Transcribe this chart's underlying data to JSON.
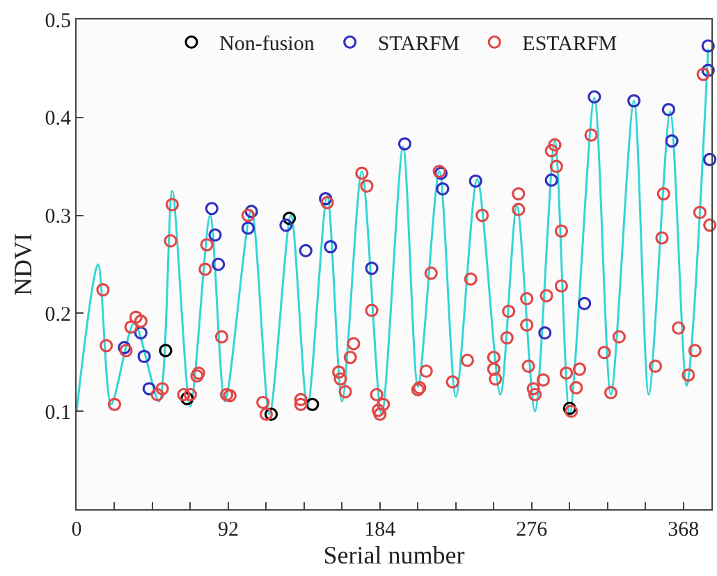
{
  "chart_data": {
    "type": "scatter",
    "xlabel": "Serial number",
    "ylabel": "NDVI",
    "xlim": [
      0,
      385
    ],
    "ylim": [
      0,
      0.5
    ],
    "xticks": [
      0,
      {
        "value": 23,
        "label": null
      },
      {
        "value": 46,
        "label": null
      },
      {
        "value": 69,
        "label": null
      },
      92,
      {
        "value": 115,
        "label": null
      },
      {
        "value": 138,
        "label": null
      },
      {
        "value": 161,
        "label": null
      },
      184,
      {
        "value": 207,
        "label": null
      },
      {
        "value": 230,
        "label": null
      },
      {
        "value": 253,
        "label": null
      },
      276,
      {
        "value": 299,
        "label": null
      },
      {
        "value": 322,
        "label": null
      },
      {
        "value": 345,
        "label": null
      },
      368
    ],
    "yticks": [
      0.1,
      0.2,
      0.3,
      0.4,
      0.5
    ],
    "grid": false,
    "legend": "top",
    "series": [
      {
        "type": "line",
        "color": "#33d6d6",
        "line_style": "solid",
        "marker": "none",
        "x": [
          0,
          13,
          21,
          35,
          50,
          58,
          69,
          81,
          90,
          106,
          117,
          130,
          140,
          152,
          161,
          173,
          185,
          198,
          207,
          220,
          230,
          243,
          257,
          267,
          278,
          290,
          299,
          314,
          324,
          338,
          347,
          360,
          370,
          383
        ],
        "values": [
          0.1,
          0.25,
          0.107,
          0.19,
          0.11,
          0.325,
          0.105,
          0.3,
          0.11,
          0.305,
          0.097,
          0.3,
          0.105,
          0.32,
          0.11,
          0.345,
          0.097,
          0.37,
          0.125,
          0.345,
          0.115,
          0.337,
          0.117,
          0.31,
          0.1,
          0.376,
          0.097,
          0.42,
          0.117,
          0.417,
          0.117,
          0.406,
          0.126,
          0.47
        ]
      },
      {
        "name": "Non-fusion",
        "color": "#000000",
        "marker": "circle",
        "x": [
          54,
          67,
          118,
          129,
          143,
          299
        ],
        "values": [
          0.162,
          0.113,
          0.097,
          0.297,
          0.107,
          0.103
        ]
      },
      {
        "name": "STARFM",
        "color": "#3030c0",
        "marker": "circle",
        "x": [
          29,
          39,
          41,
          44,
          82,
          84,
          86,
          104,
          106,
          127,
          139,
          151,
          154,
          179,
          199,
          221,
          222,
          242,
          284,
          288,
          308,
          314,
          338,
          359,
          361,
          383,
          383,
          384
        ],
        "values": [
          0.165,
          0.18,
          0.156,
          0.123,
          0.307,
          0.28,
          0.25,
          0.287,
          0.304,
          0.29,
          0.264,
          0.317,
          0.268,
          0.246,
          0.373,
          0.343,
          0.327,
          0.335,
          0.18,
          0.336,
          0.21,
          0.421,
          0.417,
          0.408,
          0.376,
          0.473,
          0.448,
          0.357
        ]
      },
      {
        "name": "ESTARFM",
        "color": "#e04848",
        "marker": "circle",
        "x": [
          16,
          18,
          23,
          30,
          33,
          36,
          39,
          49,
          52,
          57,
          58,
          65,
          69,
          73,
          74,
          78,
          79,
          88,
          91,
          93,
          104,
          113,
          115,
          136,
          136,
          152,
          159,
          160,
          163,
          166,
          168,
          173,
          176,
          179,
          182,
          183,
          184,
          186,
          207,
          208,
          212,
          215,
          220,
          228,
          237,
          239,
          246,
          253,
          253,
          254,
          261,
          262,
          268,
          268,
          273,
          273,
          274,
          277,
          278,
          283,
          285,
          288,
          290,
          291,
          294,
          294,
          297,
          300,
          303,
          305,
          312,
          320,
          324,
          329,
          351,
          355,
          356,
          365,
          371,
          375,
          378,
          380,
          384
        ],
        "values": [
          0.224,
          0.167,
          0.107,
          0.162,
          0.186,
          0.196,
          0.192,
          0.117,
          0.123,
          0.274,
          0.311,
          0.117,
          0.117,
          0.136,
          0.139,
          0.245,
          0.27,
          0.176,
          0.117,
          0.116,
          0.3,
          0.109,
          0.097,
          0.112,
          0.107,
          0.313,
          0.14,
          0.133,
          0.12,
          0.155,
          0.169,
          0.343,
          0.33,
          0.203,
          0.117,
          0.101,
          0.097,
          0.107,
          0.122,
          0.124,
          0.141,
          0.241,
          0.345,
          0.13,
          0.152,
          0.235,
          0.3,
          0.155,
          0.143,
          0.133,
          0.175,
          0.202,
          0.322,
          0.306,
          0.215,
          0.188,
          0.146,
          0.123,
          0.117,
          0.132,
          0.218,
          0.366,
          0.372,
          0.35,
          0.284,
          0.228,
          0.139,
          0.1,
          0.124,
          0.143,
          0.382,
          0.16,
          0.119,
          0.176,
          0.146,
          0.277,
          0.322,
          0.185,
          0.137,
          0.162,
          0.303,
          0.444,
          0.29
        ]
      }
    ]
  }
}
